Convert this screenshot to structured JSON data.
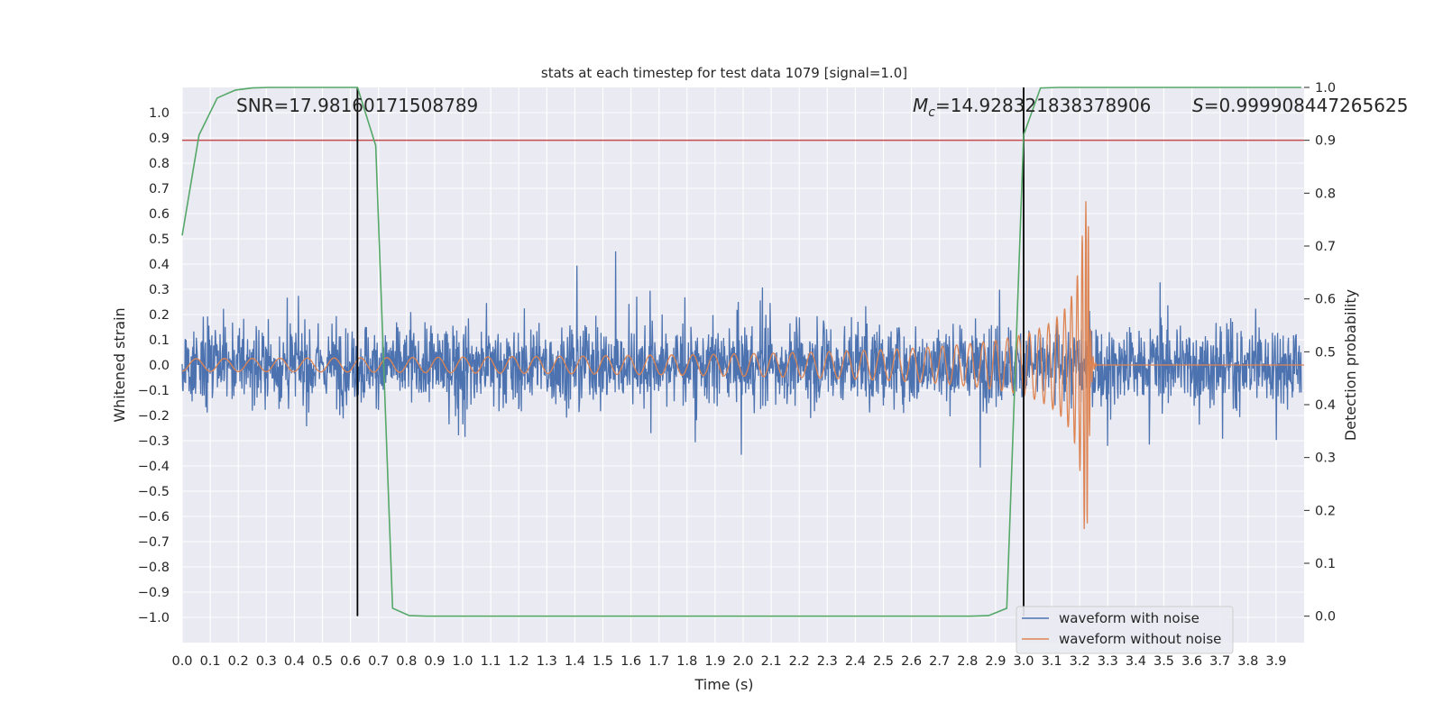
{
  "chart_data": {
    "type": "line",
    "title": "stats at each timestep for test data 1079 [signal=1.0]",
    "xlabel": "Time (s)",
    "ylabel": "Whitened strain",
    "y2label": "Detection probability",
    "xlim": [
      0.0,
      4.0
    ],
    "ylim": [
      -1.1,
      1.1
    ],
    "y2lim": [
      -0.05,
      1.0
    ],
    "x_ticks": [
      "0.0",
      "0.1",
      "0.2",
      "0.3",
      "0.4",
      "0.5",
      "0.6",
      "0.7",
      "0.8",
      "0.9",
      "1.0",
      "1.1",
      "1.2",
      "1.3",
      "1.4",
      "1.5",
      "1.6",
      "1.7",
      "1.8",
      "1.9",
      "2.0",
      "2.1",
      "2.2",
      "2.3",
      "2.4",
      "2.5",
      "2.6",
      "2.7",
      "2.8",
      "2.9",
      "3.0",
      "3.1",
      "3.2",
      "3.3",
      "3.4",
      "3.5",
      "3.6",
      "3.7",
      "3.8",
      "3.9"
    ],
    "y_ticks": [
      "1.0",
      "0.9",
      "0.8",
      "0.7",
      "0.6",
      "0.5",
      "0.4",
      "0.3",
      "0.2",
      "0.1",
      "0.0",
      "−0.1",
      "−0.2",
      "−0.3",
      "−0.4",
      "−0.5",
      "−0.6",
      "−0.7",
      "−0.8",
      "−0.9",
      "−1.0"
    ],
    "y2_ticks": [
      "1.0",
      "0.9",
      "0.8",
      "0.7",
      "0.6",
      "0.5",
      "0.4",
      "0.3",
      "0.2",
      "0.1",
      "0.0"
    ],
    "annotations": {
      "snr": "SNR=17.98160171508789",
      "mc_symbol": "M",
      "mc_subscript": "c",
      "mc_value": "=14.928321838378906",
      "s_symbol": "S",
      "s_value": "=0.999908447265625"
    },
    "vertical_lines_x": [
      0.625,
      3.0
    ],
    "threshold_y2": 0.9,
    "legend": {
      "placement": "lower-right",
      "entries": [
        "waveform with noise",
        "waveform without noise"
      ]
    },
    "series": [
      {
        "name": "waveform with noise",
        "color": "#4c72b0",
        "description": "dense whitened strain noise spanning roughly -1.0 to 1.0"
      },
      {
        "name": "waveform without noise",
        "color": "#dd8452",
        "chirp_start_amp": 0.025,
        "chirp_peak_amp": 0.65,
        "merger_time": 3.23
      },
      {
        "name": "detection probability",
        "color": "#55a868",
        "x": [
          0.0,
          0.06,
          0.125,
          0.19,
          0.25,
          0.31,
          0.375,
          0.44,
          0.5,
          0.56,
          0.625,
          0.69,
          0.75,
          0.81,
          0.875,
          1.0,
          2.0,
          2.5,
          2.75,
          2.81,
          2.875,
          2.94,
          3.0,
          3.06,
          3.125,
          3.19,
          3.25,
          3.5,
          3.75,
          3.99
        ],
        "y": [
          0.72,
          0.91,
          0.98,
          0.995,
          0.999,
          1.0,
          1.0,
          1.0,
          1.0,
          1.0,
          1.0,
          0.89,
          0.015,
          0.001,
          0.0,
          0.0,
          0.0,
          0.0,
          0.0,
          0.0,
          0.001,
          0.015,
          0.91,
          0.999,
          1.0,
          1.0,
          1.0,
          1.0,
          1.0,
          1.0
        ]
      }
    ],
    "colors": {
      "background": "#eaeaf2",
      "grid": "#ffffff",
      "threshold": "#c44e52",
      "vline": "#000000"
    }
  }
}
